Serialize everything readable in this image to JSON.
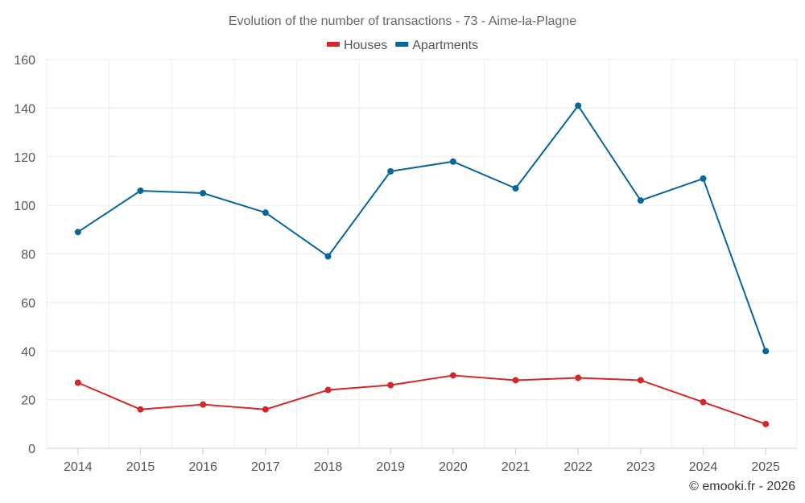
{
  "chart_data": {
    "type": "line",
    "title": "Evolution of the number of transactions - 73 - Aime-la-Plagne",
    "xlabel": "",
    "ylabel": "",
    "categories": [
      "2014",
      "2015",
      "2016",
      "2017",
      "2018",
      "2019",
      "2020",
      "2021",
      "2022",
      "2023",
      "2024",
      "2025"
    ],
    "ylim": [
      0,
      160
    ],
    "yticks": [
      0,
      20,
      40,
      60,
      80,
      100,
      120,
      140,
      160
    ],
    "grid": true,
    "legend_position": "top-center",
    "series": [
      {
        "name": "Houses",
        "color": "#d62728",
        "values": [
          27,
          16,
          18,
          16,
          24,
          26,
          30,
          28,
          29,
          28,
          19,
          10
        ]
      },
      {
        "name": "Apartments",
        "color": "#05679c",
        "values": [
          89,
          106,
          105,
          97,
          79,
          114,
          118,
          107,
          141,
          102,
          111,
          40
        ]
      }
    ]
  },
  "credit": "© emooki.fr - 2026"
}
